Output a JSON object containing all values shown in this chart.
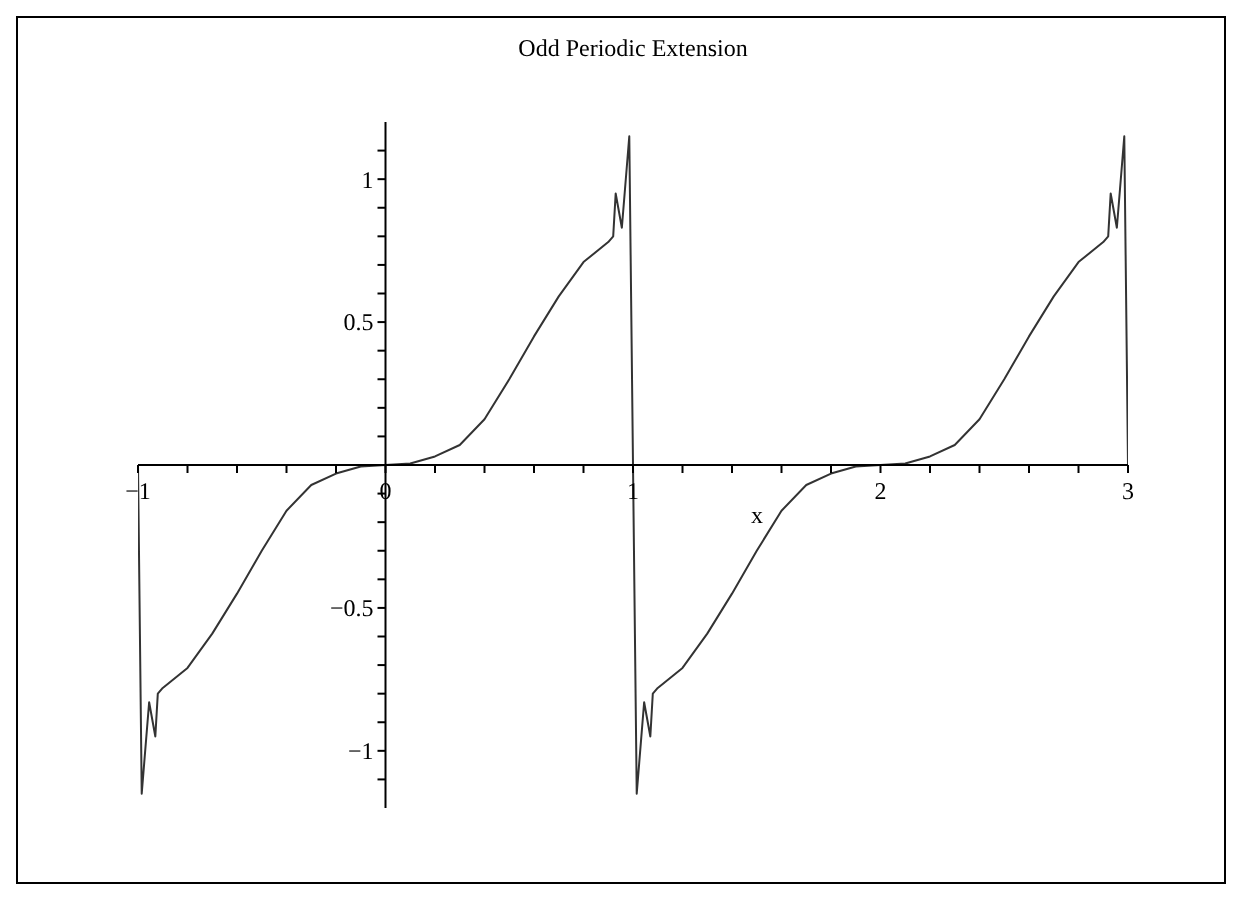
{
  "chart_data": {
    "type": "line",
    "title": "Odd Periodic Extension",
    "xlabel": "x",
    "x": [
      -1,
      -0.985,
      -0.955,
      -0.93,
      -0.92,
      -0.9,
      -0.8,
      -0.7,
      -0.6,
      -0.5,
      -0.4,
      -0.3,
      -0.2,
      -0.1,
      0,
      0.1,
      0.2,
      0.3,
      0.4,
      0.5,
      0.6,
      0.7,
      0.8,
      0.9,
      0.92,
      0.93,
      0.955,
      0.985,
      1.015,
      1.045,
      1.07,
      1.08,
      1.1,
      1.2,
      1.3,
      1.4,
      1.5,
      1.6,
      1.7,
      1.8,
      1.9,
      2,
      2.1,
      2.2,
      2.3,
      2.4,
      2.5,
      2.6,
      2.7,
      2.8,
      2.9,
      2.92,
      2.93,
      2.955,
      2.985,
      3
    ],
    "series": [
      {
        "color": "#333333",
        "values": [
          0,
          -1.15,
          -0.83,
          -0.95,
          -0.8,
          -0.78,
          -0.71,
          -0.59,
          -0.45,
          -0.3,
          -0.16,
          -0.07,
          -0.03,
          -0.005,
          0,
          0.005,
          0.03,
          0.07,
          0.16,
          0.3,
          0.45,
          0.59,
          0.71,
          0.78,
          0.8,
          0.95,
          0.83,
          1.15,
          -1.15,
          -0.83,
          -0.95,
          -0.8,
          -0.78,
          -0.71,
          -0.59,
          -0.45,
          -0.3,
          -0.16,
          -0.07,
          -0.03,
          -0.005,
          0,
          0.005,
          0.03,
          0.07,
          0.16,
          0.3,
          0.45,
          0.59,
          0.71,
          0.78,
          0.8,
          0.95,
          0.83,
          1.15,
          0
        ]
      }
    ],
    "xlim": [
      -1,
      3
    ],
    "ylim": [
      -1.2,
      1.2
    ],
    "xticks": [
      {
        "value": -1,
        "label": "−1"
      },
      {
        "value": -0.8,
        "label": null
      },
      {
        "value": -0.6,
        "label": null
      },
      {
        "value": -0.4,
        "label": null
      },
      {
        "value": -0.2,
        "label": null
      },
      0,
      {
        "value": 0.2,
        "label": null
      },
      {
        "value": 0.4,
        "label": null
      },
      {
        "value": 0.6,
        "label": null
      },
      {
        "value": 0.8,
        "label": null
      },
      1,
      {
        "value": 1.2,
        "label": null
      },
      {
        "value": 1.4,
        "label": null
      },
      {
        "value": 1.6,
        "label": null
      },
      {
        "value": 1.8,
        "label": null
      },
      2,
      {
        "value": 2.2,
        "label": null
      },
      {
        "value": 2.4,
        "label": null
      },
      {
        "value": 2.6,
        "label": null
      },
      {
        "value": 2.8,
        "label": null
      },
      3
    ],
    "yticks": [
      {
        "value": -1.1,
        "label": null
      },
      {
        "value": -1,
        "label": "−1"
      },
      {
        "value": -0.9,
        "label": null
      },
      {
        "value": -0.8,
        "label": null
      },
      {
        "value": -0.7,
        "label": null
      },
      {
        "value": -0.6,
        "label": null
      },
      {
        "value": -0.5,
        "label": "−0.5"
      },
      {
        "value": -0.4,
        "label": null
      },
      {
        "value": -0.3,
        "label": null
      },
      {
        "value": -0.2,
        "label": null
      },
      {
        "value": -0.1,
        "label": null
      },
      {
        "value": 0.1,
        "label": null
      },
      {
        "value": 0.2,
        "label": null
      },
      {
        "value": 0.3,
        "label": null
      },
      {
        "value": 0.4,
        "label": null
      },
      0.5,
      {
        "value": 0.6,
        "label": null
      },
      {
        "value": 0.7,
        "label": null
      },
      {
        "value": 0.8,
        "label": null
      },
      {
        "value": 0.9,
        "label": null
      },
      1,
      {
        "value": 1.1,
        "label": null
      }
    ],
    "grid": false,
    "legend": false,
    "marker": "none",
    "line_style": "solid"
  }
}
